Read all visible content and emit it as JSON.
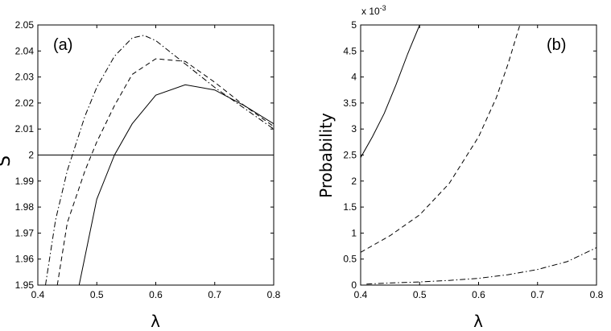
{
  "chart_data": [
    {
      "type": "line",
      "panel_label": "(a)",
      "xlabel": "λ",
      "ylabel": "S",
      "xlim": [
        0.4,
        0.8
      ],
      "ylim": [
        1.95,
        2.05
      ],
      "xticks": [
        0.4,
        0.5,
        0.6,
        0.7,
        0.8
      ],
      "xtick_labels": [
        "0.4",
        "0.5",
        "0.6",
        "0.7",
        "0.8"
      ],
      "yticks": [
        1.95,
        1.96,
        1.97,
        1.98,
        1.99,
        2.0,
        2.01,
        2.02,
        2.03,
        2.04,
        2.05
      ],
      "ytick_labels": [
        "1.95",
        "1.96",
        "1.97",
        "1.98",
        "1.99",
        "2",
        "2.01",
        "2.02",
        "2.03",
        "2.04",
        "2.05"
      ],
      "grid": false,
      "series": [
        {
          "style": "solid",
          "x": [
            0.47,
            0.5,
            0.53,
            0.56,
            0.6,
            0.65,
            0.7,
            0.75,
            0.8
          ],
          "y": [
            1.95,
            1.983,
            2.0,
            2.012,
            2.023,
            2.027,
            2.025,
            2.019,
            2.012
          ]
        },
        {
          "style": "dashed",
          "x": [
            0.433,
            0.45,
            0.48,
            0.5,
            0.53,
            0.56,
            0.6,
            0.65,
            0.7,
            0.75,
            0.8
          ],
          "y": [
            1.95,
            1.974,
            1.994,
            2.005,
            2.019,
            2.031,
            2.037,
            2.036,
            2.028,
            2.019,
            2.011
          ]
        },
        {
          "style": "dashdot",
          "x": [
            0.413,
            0.43,
            0.45,
            0.48,
            0.5,
            0.53,
            0.56,
            0.58,
            0.6,
            0.65,
            0.7,
            0.75,
            0.8
          ],
          "y": [
            1.95,
            1.975,
            1.994,
            2.015,
            2.026,
            2.038,
            2.045,
            2.046,
            2.044,
            2.035,
            2.026,
            2.018,
            2.01
          ]
        },
        {
          "style": "solid",
          "x": [
            0.4,
            0.8
          ],
          "y": [
            2.0,
            2.0
          ]
        }
      ]
    },
    {
      "type": "line",
      "panel_label": "(b)",
      "xlabel": "λ",
      "ylabel": "Probability",
      "exponent_label": "x 10",
      "exponent_power": "-3",
      "xlim": [
        0.4,
        0.8
      ],
      "ylim": [
        0,
        5
      ],
      "xticks": [
        0.4,
        0.5,
        0.6,
        0.7,
        0.8
      ],
      "xtick_labels": [
        "0.4",
        "0.5",
        "0.6",
        "0.7",
        "0.8"
      ],
      "yticks": [
        0,
        0.5,
        1,
        1.5,
        2,
        2.5,
        3,
        3.5,
        4,
        4.5,
        5
      ],
      "ytick_labels": [
        "0",
        "0.5",
        "1",
        "1.5",
        "2",
        "2.5",
        "3",
        "3.5",
        "4",
        "4.5",
        "5"
      ],
      "grid": false,
      "series": [
        {
          "style": "solid",
          "x": [
            0.4,
            0.42,
            0.44,
            0.46,
            0.48,
            0.5
          ],
          "y": [
            2.45,
            2.85,
            3.3,
            3.85,
            4.45,
            5.0
          ]
        },
        {
          "style": "dashed",
          "x": [
            0.4,
            0.45,
            0.5,
            0.55,
            0.6,
            0.63,
            0.65,
            0.67
          ],
          "y": [
            0.63,
            0.95,
            1.35,
            1.95,
            2.85,
            3.6,
            4.25,
            5.0
          ]
        },
        {
          "style": "dashdot",
          "x": [
            0.41,
            0.45,
            0.5,
            0.55,
            0.6,
            0.65,
            0.7,
            0.75,
            0.8
          ],
          "y": [
            0.02,
            0.04,
            0.06,
            0.09,
            0.13,
            0.2,
            0.3,
            0.45,
            0.72
          ]
        }
      ]
    }
  ]
}
